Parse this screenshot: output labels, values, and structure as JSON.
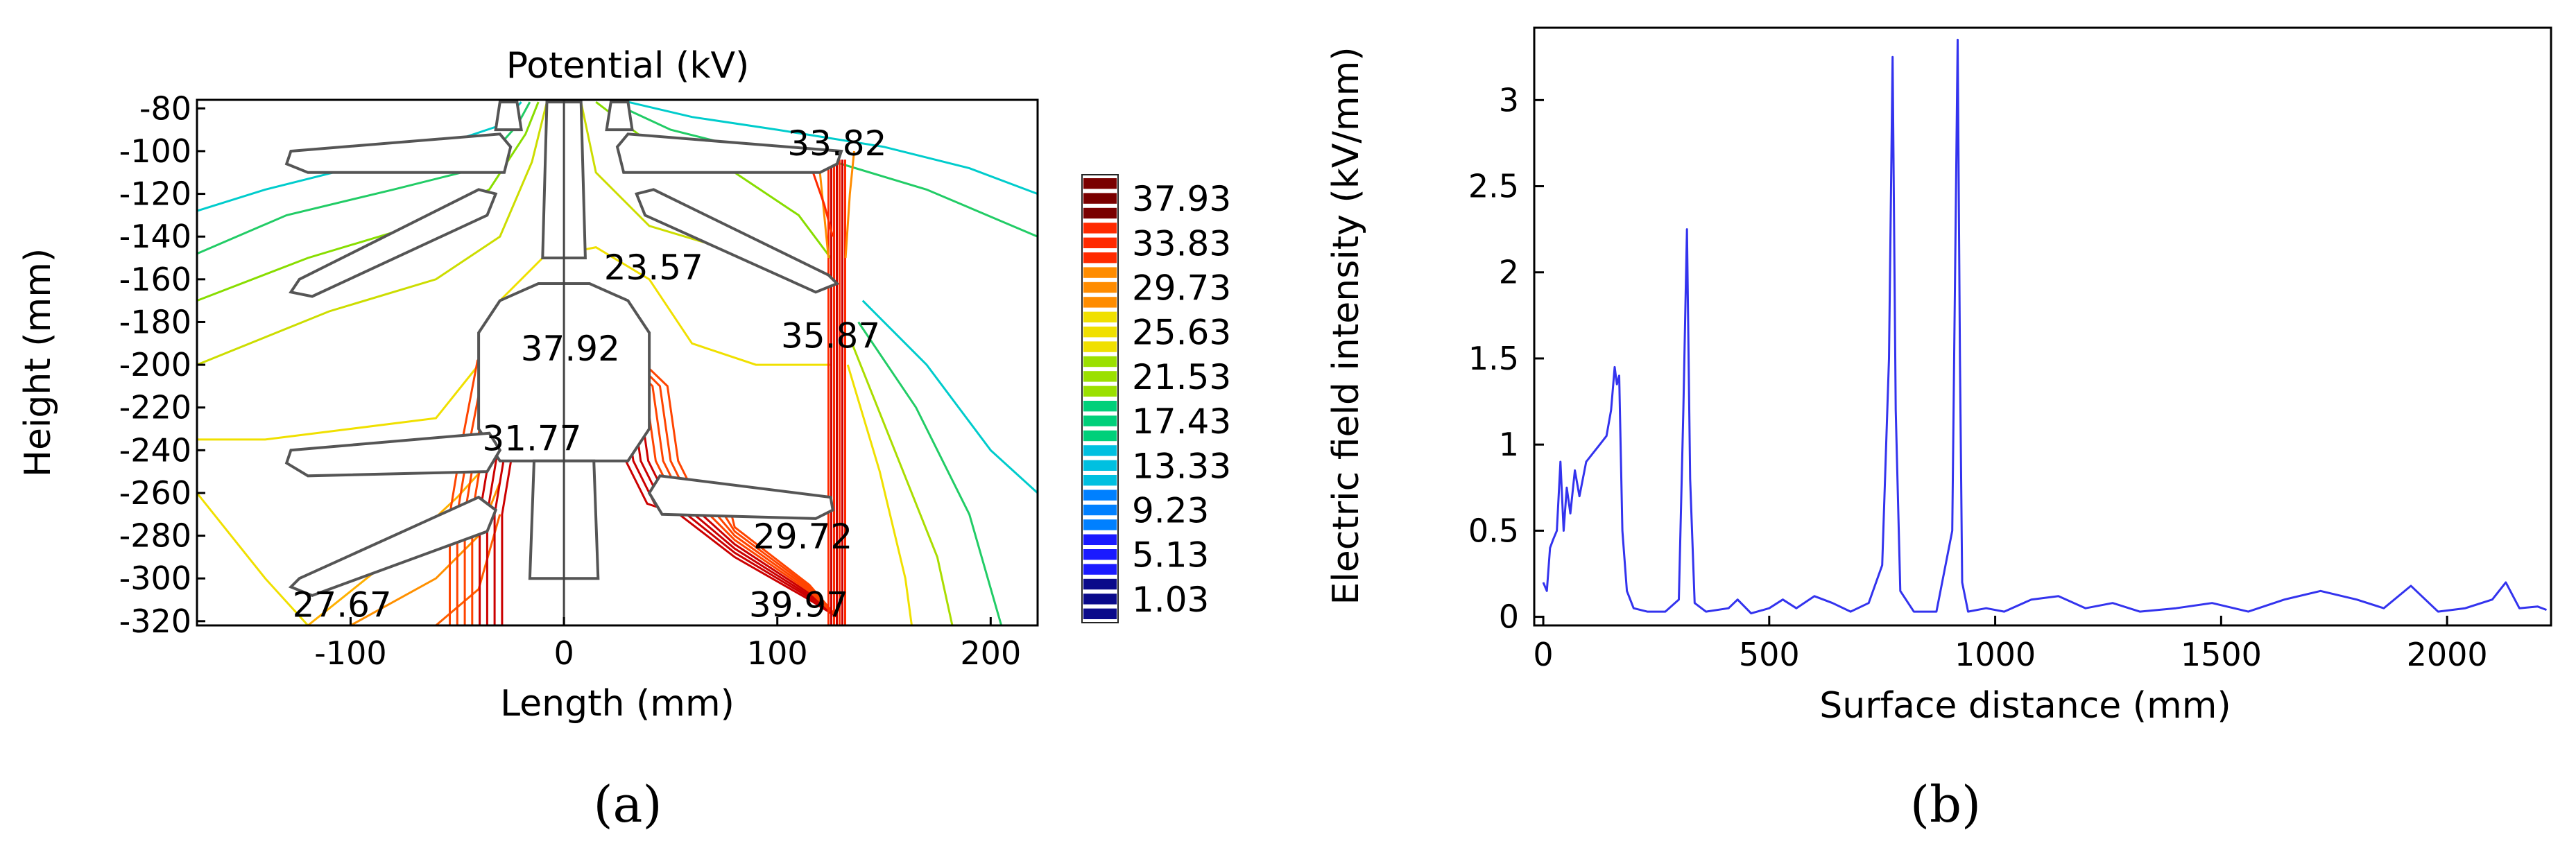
{
  "chart_data": [
    {
      "panel_label": "(a)",
      "type": "heatmap",
      "title": "Potential (kV)",
      "xlabel": "Length (mm)",
      "ylabel": "Height (mm)",
      "xlim": [
        -172,
        222
      ],
      "ylim": [
        -322,
        -76
      ],
      "x_ticks": [
        -100,
        0,
        100,
        200
      ],
      "y_ticks": [
        -80,
        -100,
        -120,
        -140,
        -160,
        -180,
        -200,
        -220,
        -240,
        -260,
        -280,
        -300,
        -320
      ],
      "colorbar": {
        "levels": [
          "37.93",
          "33.83",
          "29.73",
          "25.63",
          "21.53",
          "17.43",
          "13.33",
          "9.23",
          "5.13",
          "1.03"
        ],
        "colors": [
          "#7a0000",
          "#ff2a00",
          "#ff8c00",
          "#f0e000",
          "#9be000",
          "#00d07a",
          "#00c0e0",
          "#0080ff",
          "#1a1aff",
          "#0a0a8a"
        ]
      },
      "annotations": [
        {
          "text": "33.82",
          "x": 128,
          "y": -102
        },
        {
          "text": "23.57",
          "x": 42,
          "y": -160
        },
        {
          "text": "37.92",
          "x": 3,
          "y": -198
        },
        {
          "text": "35.87",
          "x": 125,
          "y": -192
        },
        {
          "text": "31.77",
          "x": -15,
          "y": -240
        },
        {
          "text": "29.72",
          "x": 112,
          "y": -286
        },
        {
          "text": "27.67",
          "x": -104,
          "y": -318
        },
        {
          "text": "39.97",
          "x": 110,
          "y": -318
        }
      ]
    },
    {
      "panel_label": "(b)",
      "type": "line",
      "xlabel": "Surface distance (mm)",
      "ylabel": "Electric field intensity (kV/mm)",
      "xlim": [
        -20,
        2230
      ],
      "ylim": [
        -0.05,
        3.42
      ],
      "x_ticks": [
        0,
        500,
        1000,
        1500,
        2000
      ],
      "y_ticks": [
        0,
        0.5,
        1,
        1.5,
        2,
        2.5,
        3
      ],
      "series": [
        {
          "name": "Electric field intensity",
          "color": "#3333ee",
          "x": [
            0,
            8,
            15,
            22,
            30,
            38,
            45,
            52,
            60,
            70,
            80,
            95,
            110,
            125,
            140,
            150,
            158,
            163,
            168,
            175,
            185,
            200,
            230,
            270,
            300,
            310,
            318,
            325,
            335,
            360,
            410,
            430,
            460,
            500,
            530,
            560,
            600,
            640,
            680,
            720,
            750,
            765,
            773,
            780,
            790,
            820,
            870,
            905,
            917,
            922,
            927,
            940,
            980,
            1020,
            1080,
            1140,
            1200,
            1260,
            1320,
            1400,
            1480,
            1560,
            1640,
            1720,
            1800,
            1860,
            1920,
            1980,
            2040,
            2100,
            2130,
            2160,
            2200,
            2220
          ],
          "values": [
            0.2,
            0.15,
            0.4,
            0.45,
            0.5,
            0.9,
            0.5,
            0.75,
            0.6,
            0.85,
            0.7,
            0.9,
            0.95,
            1.0,
            1.05,
            1.2,
            1.45,
            1.35,
            1.4,
            0.5,
            0.15,
            0.05,
            0.03,
            0.03,
            0.1,
            1.2,
            2.25,
            0.8,
            0.08,
            0.03,
            0.05,
            0.1,
            0.02,
            0.05,
            0.1,
            0.05,
            0.12,
            0.08,
            0.03,
            0.08,
            0.3,
            1.5,
            3.25,
            1.2,
            0.15,
            0.03,
            0.03,
            0.5,
            3.35,
            1.5,
            0.2,
            0.03,
            0.05,
            0.03,
            0.1,
            0.12,
            0.05,
            0.08,
            0.03,
            0.05,
            0.08,
            0.03,
            0.1,
            0.15,
            0.1,
            0.05,
            0.18,
            0.03,
            0.05,
            0.1,
            0.2,
            0.05,
            0.06,
            0.04
          ]
        }
      ]
    }
  ]
}
